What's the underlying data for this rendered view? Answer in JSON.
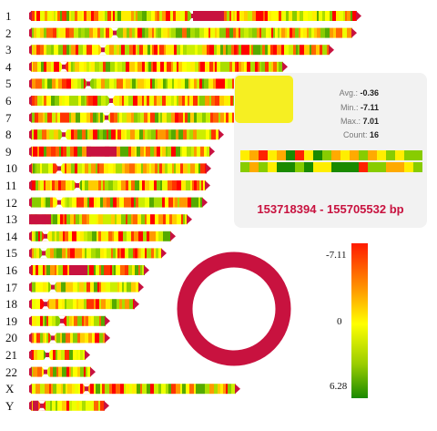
{
  "chromosomes": [
    "1",
    "2",
    "3",
    "4",
    "5",
    "6",
    "7",
    "8",
    "9",
    "10",
    "11",
    "12",
    "13",
    "14",
    "15",
    "16",
    "17",
    "18",
    "19",
    "20",
    "21",
    "22",
    "X",
    "Y"
  ],
  "tooltip": {
    "avg_label": "Avg.:",
    "avg_value": "-0.36",
    "min_label": "Min.:",
    "min_value": "-7.11",
    "max_label": "Max.:",
    "max_value": "7.01",
    "count_label": "Count:",
    "count_value": "16",
    "range": "153718394 - 155705532 bp"
  },
  "legend": {
    "min_label": "-7.11",
    "mid_label": "0",
    "max_label": "6.28"
  },
  "colors": {
    "accent": "#c8123f",
    "high": "#ff2200",
    "mid": "#ffff00",
    "low": "#1a8a00"
  },
  "chart_data": {
    "type": "heatmap",
    "categories": [
      "1",
      "2",
      "3",
      "4",
      "5",
      "6",
      "7",
      "8",
      "9",
      "10",
      "11",
      "12",
      "13",
      "14",
      "15",
      "16",
      "17",
      "18",
      "19",
      "20",
      "21",
      "22",
      "X",
      "Y"
    ],
    "value_range": [
      -7.11,
      6.28
    ],
    "selected_region": {
      "chromosome": "X",
      "start_bp": 153718394,
      "end_bp": 155705532,
      "avg": -0.36,
      "min": -7.11,
      "max": 7.01,
      "count": 16
    }
  }
}
